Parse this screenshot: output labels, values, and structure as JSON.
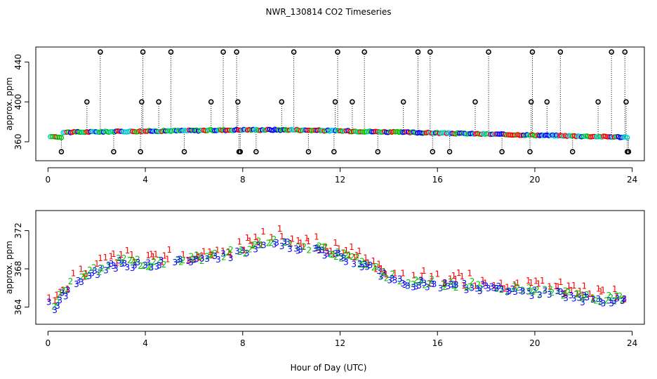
{
  "title": "NWR_130814  CO2 Timeseries",
  "xlabel": "Hour of Day (UTC)",
  "colors": {
    "black": "#000000",
    "red": "#ff0000",
    "green": "#00c000",
    "blue": "#0000ff",
    "cyan": "#00cccc"
  },
  "chart_data": [
    {
      "type": "scatter",
      "panel": "top",
      "title": "NWR_130814  CO2 Timeseries",
      "ylabel": "approx. ppm",
      "xlim": [
        -0.5,
        24.5
      ],
      "ylim": [
        341,
        455
      ],
      "xticks": [
        0,
        4,
        8,
        12,
        16,
        20,
        24
      ],
      "yticks": [
        360,
        400,
        440
      ],
      "baseline": {
        "start": 365,
        "rise_to": 369.5,
        "peak": 372,
        "end": 364.5,
        "series": [
          "red",
          "green",
          "blue",
          "cyan"
        ]
      },
      "spikes": [
        {
          "x": 0.55,
          "y": 350
        },
        {
          "x": 1.6,
          "y": 400
        },
        {
          "x": 2.15,
          "y": 450
        },
        {
          "x": 2.7,
          "y": 350
        },
        {
          "x": 3.8,
          "y": 350
        },
        {
          "x": 3.85,
          "y": 400
        },
        {
          "x": 3.9,
          "y": 450
        },
        {
          "x": 4.55,
          "y": 400
        },
        {
          "x": 5.05,
          "y": 450
        },
        {
          "x": 5.6,
          "y": 350
        },
        {
          "x": 6.7,
          "y": 400
        },
        {
          "x": 7.2,
          "y": 450
        },
        {
          "x": 7.75,
          "y": 450
        },
        {
          "x": 7.8,
          "y": 400
        },
        {
          "x": 7.85,
          "y": 350
        },
        {
          "x": 7.9,
          "y": 350
        },
        {
          "x": 8.55,
          "y": 350
        },
        {
          "x": 9.6,
          "y": 400
        },
        {
          "x": 10.1,
          "y": 450
        },
        {
          "x": 10.7,
          "y": 350
        },
        {
          "x": 11.75,
          "y": 350
        },
        {
          "x": 11.8,
          "y": 400
        },
        {
          "x": 11.9,
          "y": 450
        },
        {
          "x": 12.5,
          "y": 400
        },
        {
          "x": 13.0,
          "y": 450
        },
        {
          "x": 13.55,
          "y": 350
        },
        {
          "x": 14.6,
          "y": 400
        },
        {
          "x": 15.2,
          "y": 450
        },
        {
          "x": 15.7,
          "y": 450
        },
        {
          "x": 15.8,
          "y": 350
        },
        {
          "x": 16.5,
          "y": 350
        },
        {
          "x": 17.55,
          "y": 400
        },
        {
          "x": 18.1,
          "y": 450
        },
        {
          "x": 18.65,
          "y": 350
        },
        {
          "x": 19.8,
          "y": 350
        },
        {
          "x": 19.85,
          "y": 400
        },
        {
          "x": 19.9,
          "y": 450
        },
        {
          "x": 20.5,
          "y": 400
        },
        {
          "x": 21.05,
          "y": 450
        },
        {
          "x": 21.55,
          "y": 350
        },
        {
          "x": 22.6,
          "y": 400
        },
        {
          "x": 23.15,
          "y": 450
        },
        {
          "x": 23.7,
          "y": 450
        },
        {
          "x": 23.75,
          "y": 400
        },
        {
          "x": 23.8,
          "y": 350
        },
        {
          "x": 23.85,
          "y": 350
        }
      ]
    },
    {
      "type": "scatter",
      "panel": "bottom",
      "ylabel": "approx. ppm",
      "xlim": [
        -0.5,
        24.5
      ],
      "ylim": [
        362.2,
        374.1
      ],
      "xticks": [
        0,
        4,
        8,
        12,
        16,
        20,
        24
      ],
      "yticks": [
        364,
        368,
        372
      ],
      "series": [
        {
          "name": "1",
          "label": "1",
          "color": "red"
        },
        {
          "name": "2",
          "label": "2",
          "color": "green"
        },
        {
          "name": "3",
          "label": "3",
          "color": "blue"
        }
      ],
      "trend": [
        {
          "x": 0.0,
          "y": 365.0
        },
        {
          "x": 0.25,
          "y": 363.8
        },
        {
          "x": 0.45,
          "y": 365.2
        },
        {
          "x": 0.7,
          "y": 365.5
        },
        {
          "x": 1.0,
          "y": 366.8
        },
        {
          "x": 2.0,
          "y": 367.9
        },
        {
          "x": 3.0,
          "y": 368.8
        },
        {
          "x": 3.8,
          "y": 368.6
        },
        {
          "x": 4.0,
          "y": 368.5
        },
        {
          "x": 5.0,
          "y": 368.9
        },
        {
          "x": 6.0,
          "y": 369.0
        },
        {
          "x": 7.0,
          "y": 369.4
        },
        {
          "x": 8.0,
          "y": 369.9
        },
        {
          "x": 9.0,
          "y": 370.9
        },
        {
          "x": 9.5,
          "y": 371.1
        },
        {
          "x": 10.0,
          "y": 370.6
        },
        {
          "x": 11.0,
          "y": 370.2
        },
        {
          "x": 12.0,
          "y": 369.5
        },
        {
          "x": 13.0,
          "y": 368.6
        },
        {
          "x": 14.0,
          "y": 367.2
        },
        {
          "x": 15.0,
          "y": 366.7
        },
        {
          "x": 16.0,
          "y": 366.5
        },
        {
          "x": 17.0,
          "y": 366.4
        },
        {
          "x": 18.0,
          "y": 366.2
        },
        {
          "x": 19.0,
          "y": 365.9
        },
        {
          "x": 20.0,
          "y": 365.6
        },
        {
          "x": 21.0,
          "y": 365.5
        },
        {
          "x": 22.0,
          "y": 365.1
        },
        {
          "x": 23.0,
          "y": 364.9
        },
        {
          "x": 23.8,
          "y": 364.7
        }
      ]
    }
  ]
}
